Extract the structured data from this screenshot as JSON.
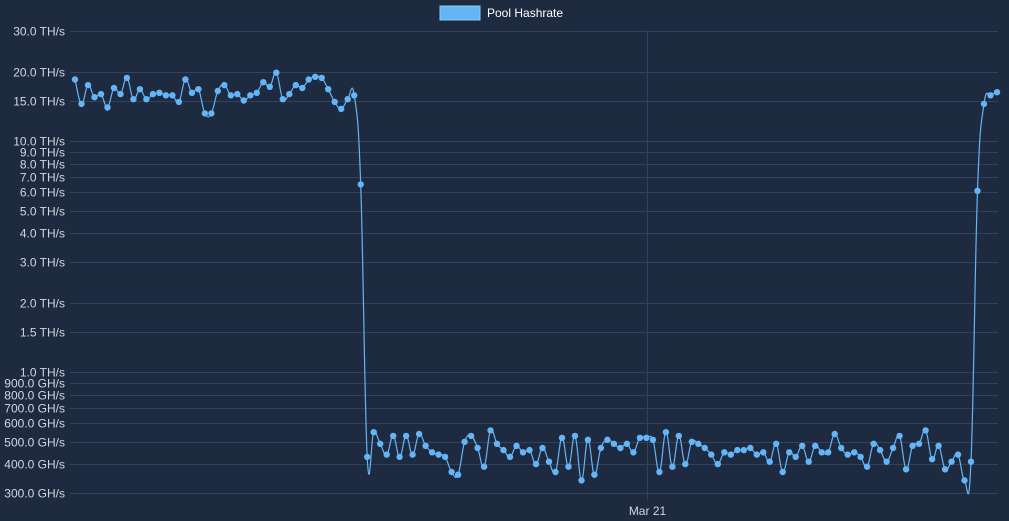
{
  "chart_data": {
    "type": "line",
    "title": "",
    "xlabel": "",
    "ylabel": "",
    "x_tick_labels": [
      "Mar 21"
    ],
    "x_tick_positions": [
      0.62
    ],
    "y_scale": "log",
    "ylim": [
      0.28,
      30
    ],
    "y_ticks": [
      {
        "value": 30,
        "label": "30.0 TH/s"
      },
      {
        "value": 20,
        "label": "20.0 TH/s"
      },
      {
        "value": 15,
        "label": "15.0 TH/s"
      },
      {
        "value": 10,
        "label": "10.0 TH/s"
      },
      {
        "value": 9,
        "label": "9.0 TH/s"
      },
      {
        "value": 8,
        "label": "8.0 TH/s"
      },
      {
        "value": 7,
        "label": "7.0 TH/s"
      },
      {
        "value": 6,
        "label": "6.0 TH/s"
      },
      {
        "value": 5,
        "label": "5.0 TH/s"
      },
      {
        "value": 4,
        "label": "4.0 TH/s"
      },
      {
        "value": 3,
        "label": "3.0 TH/s"
      },
      {
        "value": 2,
        "label": "2.0 TH/s"
      },
      {
        "value": 1.5,
        "label": "1.5 TH/s"
      },
      {
        "value": 1,
        "label": "1.0 TH/s"
      },
      {
        "value": 0.9,
        "label": "900.0 GH/s"
      },
      {
        "value": 0.8,
        "label": "800.0 GH/s"
      },
      {
        "value": 0.7,
        "label": "700.0 GH/s"
      },
      {
        "value": 0.6,
        "label": "600.0 GH/s"
      },
      {
        "value": 0.5,
        "label": "500.0 GH/s"
      },
      {
        "value": 0.4,
        "label": "400.0 GH/s"
      },
      {
        "value": 0.3,
        "label": "300.0 GH/s"
      }
    ],
    "legend": {
      "placement": "top-center"
    },
    "series": [
      {
        "name": "Pool Hashrate",
        "color": "#64b5f6",
        "unit": "TH/s",
        "values": [
          18.5,
          14.5,
          17.5,
          15.5,
          16.0,
          14.0,
          17.0,
          16.0,
          18.8,
          15.2,
          16.8,
          15.2,
          16.0,
          16.2,
          15.8,
          15.8,
          14.8,
          18.5,
          16.2,
          16.8,
          13.2,
          13.2,
          16.5,
          17.5,
          15.8,
          16.0,
          15.0,
          15.8,
          16.2,
          18.0,
          17.2,
          19.8,
          15.2,
          16.0,
          17.5,
          17.0,
          18.5,
          19.0,
          18.8,
          16.8,
          14.8,
          13.8,
          15.2,
          15.8,
          6.5,
          0.43,
          0.55,
          0.49,
          0.44,
          0.53,
          0.43,
          0.53,
          0.44,
          0.54,
          0.48,
          0.45,
          0.44,
          0.43,
          0.37,
          0.36,
          0.5,
          0.53,
          0.47,
          0.39,
          0.56,
          0.49,
          0.46,
          0.43,
          0.48,
          0.45,
          0.46,
          0.4,
          0.47,
          0.41,
          0.37,
          0.52,
          0.39,
          0.53,
          0.34,
          0.51,
          0.36,
          0.47,
          0.51,
          0.49,
          0.47,
          0.49,
          0.45,
          0.52,
          0.52,
          0.51,
          0.37,
          0.55,
          0.39,
          0.53,
          0.4,
          0.5,
          0.49,
          0.47,
          0.44,
          0.4,
          0.45,
          0.44,
          0.46,
          0.46,
          0.47,
          0.44,
          0.45,
          0.41,
          0.49,
          0.37,
          0.45,
          0.43,
          0.48,
          0.41,
          0.48,
          0.45,
          0.45,
          0.54,
          0.47,
          0.44,
          0.45,
          0.43,
          0.39,
          0.49,
          0.46,
          0.41,
          0.47,
          0.53,
          0.38,
          0.48,
          0.49,
          0.56,
          0.42,
          0.48,
          0.38,
          0.41,
          0.44,
          0.34,
          0.41,
          6.1,
          14.5,
          15.8,
          16.3
        ]
      }
    ]
  }
}
